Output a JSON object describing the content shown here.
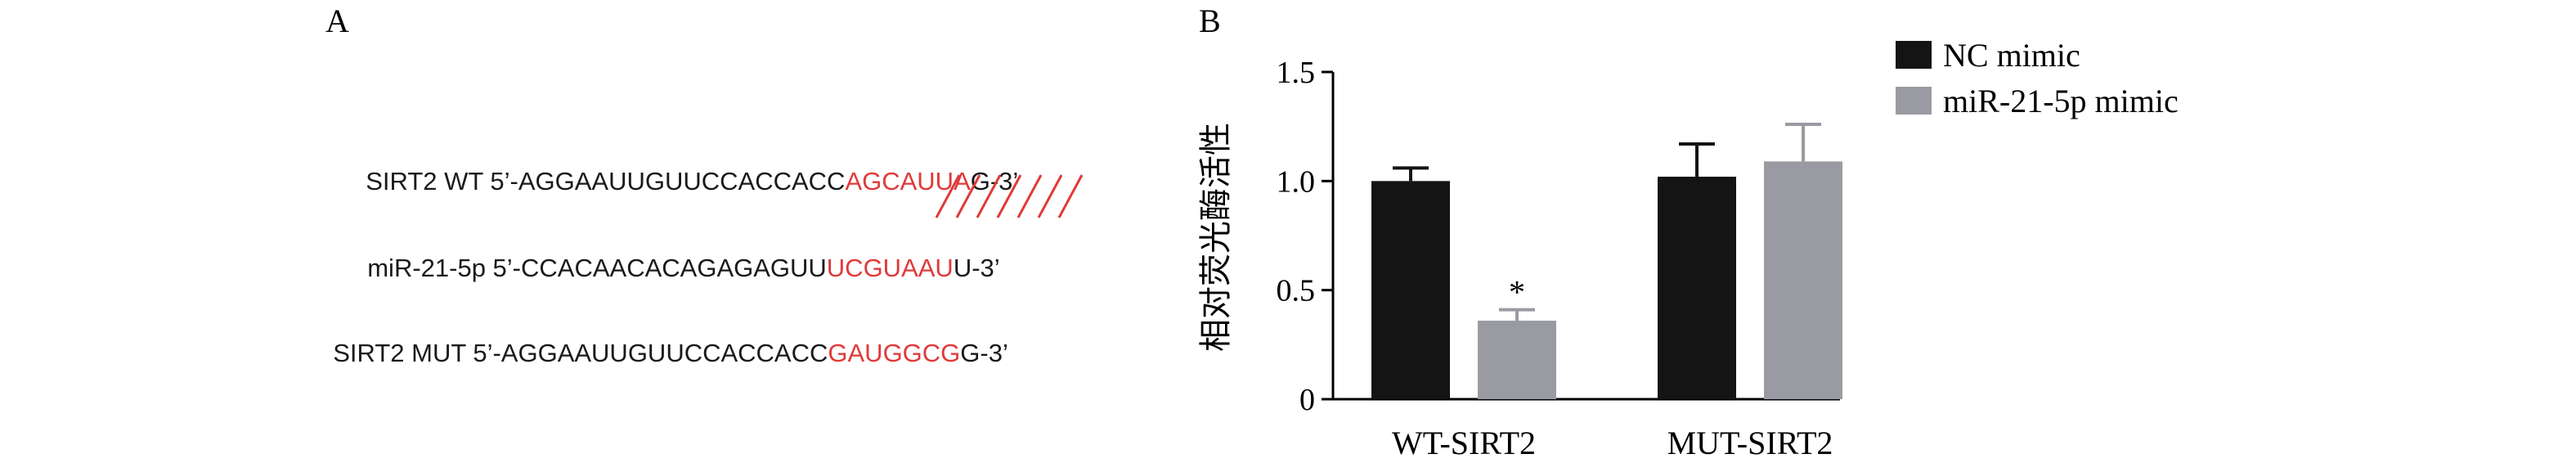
{
  "panel_a": {
    "letter": "A",
    "rows": [
      {
        "prefix": "SIRT2 WT 5’-AGGAAUUGUUCCACCACC",
        "highlight": "AGCAUUA",
        "suffix": "G-3’"
      },
      {
        "prefix": "miR-21-5p 5’-CCACAACACAGAGAGUU",
        "highlight": "UCGUAAU",
        "suffix": "U-3’"
      },
      {
        "prefix": "SIRT2 MUT 5’-AGGAAUUGUUCCACCACC",
        "highlight": "GAUGGCG",
        "suffix": "G-3’"
      }
    ],
    "pairing_color": "#e03a3a"
  },
  "panel_b": {
    "letter": "B"
  },
  "legend": {
    "items": [
      {
        "label": "NC mimic",
        "color": "#141414"
      },
      {
        "label": "miR-21-5p mimic",
        "color": "#9a9ba2"
      }
    ]
  },
  "chart_data": {
    "type": "bar",
    "ylabel": "相对荧光酶活性",
    "categories": [
      "WT-SIRT2",
      "MUT-SIRT2"
    ],
    "ylim": [
      0,
      1.5
    ],
    "yticks": [
      "0",
      "0.5",
      "1.0",
      "1.5"
    ],
    "series": [
      {
        "name": "NC mimic",
        "color": "#141414",
        "values": [
          1.0,
          1.02
        ],
        "errors": [
          0.06,
          0.15
        ]
      },
      {
        "name": "miR-21-5p mimic",
        "color": "#9a9ba2",
        "values": [
          0.36,
          1.09
        ],
        "errors": [
          0.05,
          0.17
        ]
      }
    ],
    "annotations": [
      {
        "category": 0,
        "series": 1,
        "text": "*"
      }
    ]
  }
}
